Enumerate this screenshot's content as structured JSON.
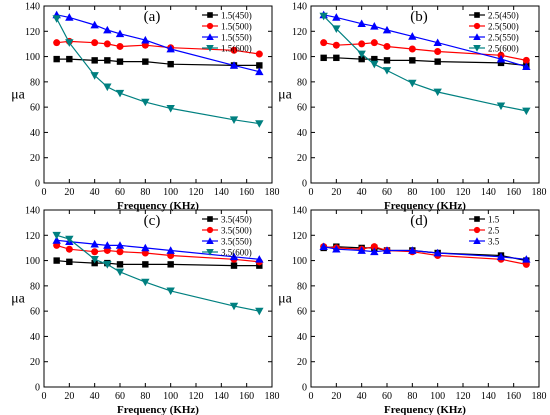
{
  "chart_data": [
    {
      "type": "line",
      "panel_label": "(a)",
      "xlabel": "Frequency (KHz)",
      "ylabel": "μa",
      "xlim": [
        0,
        180
      ],
      "ylim": [
        0,
        140
      ],
      "xticks": [
        0,
        20,
        40,
        60,
        80,
        100,
        120,
        140,
        160,
        180
      ],
      "yticks": [
        0,
        20,
        40,
        60,
        80,
        100,
        120,
        140
      ],
      "grid": false,
      "legend_position": "top-right",
      "x": [
        10,
        20,
        40,
        50,
        60,
        80,
        100,
        150,
        170
      ],
      "series": [
        {
          "name": "1.5(450)",
          "color": "#000000",
          "marker": "square",
          "values": [
            98,
            98,
            97,
            97,
            96,
            96,
            94,
            93,
            93
          ]
        },
        {
          "name": "1.5(500)",
          "color": "#ff0000",
          "marker": "circle",
          "values": [
            111,
            112,
            111,
            110,
            108,
            109,
            107,
            105,
            102
          ]
        },
        {
          "name": "1.5(550)",
          "color": "#0000ff",
          "marker": "triangle-up",
          "values": [
            133,
            131,
            125,
            121,
            118,
            113,
            106,
            93,
            88
          ]
        },
        {
          "name": "1.5(600)",
          "color": "#008080",
          "marker": "triangle-down",
          "values": [
            130,
            111,
            85,
            76,
            71,
            64,
            59,
            50,
            47
          ]
        }
      ]
    },
    {
      "type": "line",
      "panel_label": "(b)",
      "xlabel": "Frequency (KHz)",
      "ylabel": "μa",
      "xlim": [
        0,
        180
      ],
      "ylim": [
        0,
        140
      ],
      "xticks": [
        0,
        20,
        40,
        60,
        80,
        100,
        120,
        140,
        160,
        180
      ],
      "yticks": [
        0,
        20,
        40,
        60,
        80,
        100,
        120,
        140
      ],
      "grid": false,
      "legend_position": "top-right",
      "x": [
        10,
        20,
        40,
        50,
        60,
        80,
        100,
        150,
        170
      ],
      "series": [
        {
          "name": "2.5(450)",
          "color": "#000000",
          "marker": "square",
          "values": [
            99,
            99,
            98,
            98,
            97,
            97,
            96,
            95,
            93
          ]
        },
        {
          "name": "2.5(500)",
          "color": "#ff0000",
          "marker": "circle",
          "values": [
            111,
            109,
            110,
            111,
            108,
            106,
            104,
            101,
            97
          ]
        },
        {
          "name": "2.5(550)",
          "color": "#0000ff",
          "marker": "triangle-up",
          "values": [
            133,
            131,
            126,
            124,
            121,
            116,
            111,
            98,
            92
          ]
        },
        {
          "name": "2.5(600)",
          "color": "#008080",
          "marker": "triangle-down",
          "values": [
            132,
            122,
            102,
            94,
            89,
            79,
            72,
            61,
            57
          ]
        }
      ]
    },
    {
      "type": "line",
      "panel_label": "(c)",
      "xlabel": "Frequency (KHz)",
      "ylabel": "μa",
      "xlim": [
        0,
        180
      ],
      "ylim": [
        0,
        140
      ],
      "xticks": [
        0,
        20,
        40,
        60,
        80,
        100,
        120,
        140,
        160,
        180
      ],
      "yticks": [
        0,
        20,
        40,
        60,
        80,
        100,
        120,
        140
      ],
      "grid": false,
      "legend_position": "top-right",
      "x": [
        10,
        20,
        40,
        50,
        60,
        80,
        100,
        150,
        170
      ],
      "series": [
        {
          "name": "3.5(450)",
          "color": "#000000",
          "marker": "square",
          "values": [
            100,
            99,
            98,
            98,
            97,
            97,
            97,
            96,
            96
          ]
        },
        {
          "name": "3.5(500)",
          "color": "#ff0000",
          "marker": "circle",
          "values": [
            112,
            109,
            107,
            108,
            107,
            106,
            104,
            101,
            99
          ]
        },
        {
          "name": "3.5(550)",
          "color": "#0000ff",
          "marker": "triangle-up",
          "values": [
            116,
            115,
            113,
            112,
            112,
            110,
            108,
            103,
            101
          ]
        },
        {
          "name": "3.5(600)",
          "color": "#008080",
          "marker": "triangle-down",
          "values": [
            120,
            117,
            101,
            97,
            91,
            83,
            76,
            64,
            60
          ]
        }
      ]
    },
    {
      "type": "line",
      "panel_label": "(d)",
      "xlabel": "Frequency (KHz)",
      "ylabel": "μa",
      "xlim": [
        0,
        180
      ],
      "ylim": [
        0,
        140
      ],
      "xticks": [
        0,
        20,
        40,
        60,
        80,
        100,
        120,
        140,
        160,
        180
      ],
      "yticks": [
        0,
        20,
        40,
        60,
        80,
        100,
        120,
        140
      ],
      "grid": false,
      "legend_position": "top-right",
      "x": [
        10,
        20,
        40,
        50,
        60,
        80,
        100,
        150,
        170
      ],
      "series": [
        {
          "name": "1.5",
          "color": "#000000",
          "marker": "square",
          "values": [
            110,
            111,
            110,
            110,
            108,
            108,
            106,
            104,
            100
          ]
        },
        {
          "name": "2.5",
          "color": "#ff0000",
          "marker": "circle",
          "values": [
            111,
            110,
            109,
            111,
            108,
            107,
            104,
            101,
            97
          ]
        },
        {
          "name": "3.5",
          "color": "#0000ff",
          "marker": "triangle-up",
          "values": [
            111,
            109,
            108,
            107,
            108,
            108,
            106,
            103,
            101
          ]
        }
      ]
    }
  ]
}
